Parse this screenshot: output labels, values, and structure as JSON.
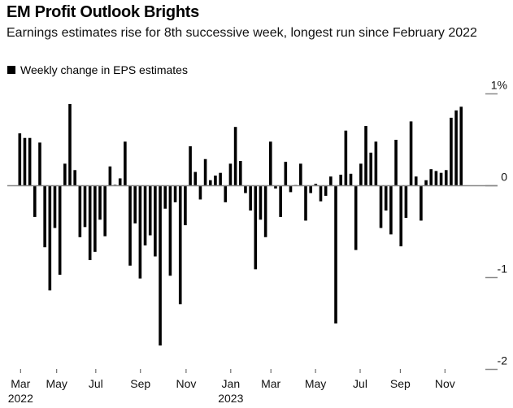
{
  "header": {
    "title": "EM Profit Outlook Brights",
    "subtitle": "Earnings estimates rise for 8th successive week, longest run since February 2022",
    "legend_label": "Weekly change in EPS estimates"
  },
  "colors": {
    "bar": "#000000",
    "axis": "#888888"
  },
  "chart_data": {
    "type": "bar",
    "title": "EM Profit Outlook Brights",
    "subtitle": "Earnings estimates rise for 8th successive week, longest run since February 2022",
    "xlabel": "",
    "ylabel": "",
    "legend": [
      "Weekly change in EPS estimates"
    ],
    "legend_position": "top-left",
    "y_unit": "%",
    "ylim": [
      -2.1,
      1.1
    ],
    "yticks": [
      {
        "value": 1,
        "label": "1%"
      },
      {
        "value": 0,
        "label": "0"
      },
      {
        "value": -1,
        "label": "-1"
      },
      {
        "value": -2,
        "label": "-2"
      }
    ],
    "xticks": [
      {
        "week_index": 0,
        "label": "Mar",
        "year": "2022"
      },
      {
        "week_index": 7.2,
        "label": "May",
        "year": ""
      },
      {
        "week_index": 15.0,
        "label": "Jul",
        "year": ""
      },
      {
        "week_index": 23.9,
        "label": "Sep",
        "year": ""
      },
      {
        "week_index": 33.0,
        "label": "Nov",
        "year": ""
      },
      {
        "week_index": 41.9,
        "label": "Jan",
        "year": "2023"
      },
      {
        "week_index": 49.9,
        "label": "Mar",
        "year": ""
      },
      {
        "week_index": 58.8,
        "label": "May",
        "year": ""
      },
      {
        "week_index": 67.7,
        "label": "Jul",
        "year": ""
      },
      {
        "week_index": 75.7,
        "label": "Sep",
        "year": ""
      },
      {
        "week_index": 84.6,
        "label": "Nov",
        "year": ""
      }
    ],
    "grid": false,
    "series": [
      {
        "name": "Weekly change in EPS estimates",
        "values": [
          0.57,
          0.52,
          0.52,
          -0.34,
          0.47,
          -0.67,
          -1.14,
          -0.46,
          -0.97,
          0.24,
          0.89,
          0.17,
          -0.56,
          -0.45,
          -0.81,
          -0.72,
          -0.37,
          -0.55,
          0.21,
          0.01,
          0.08,
          0.48,
          -0.87,
          -0.41,
          -1.01,
          -0.65,
          -0.54,
          -0.77,
          -1.74,
          -0.25,
          -0.98,
          -0.18,
          -1.29,
          -0.43,
          0.43,
          0.15,
          -0.15,
          0.29,
          0.06,
          0.11,
          0.14,
          -0.18,
          0.24,
          0.64,
          0.27,
          -0.08,
          -0.27,
          -0.91,
          -0.37,
          -0.56,
          0.48,
          -0.03,
          -0.34,
          0.26,
          -0.07,
          0.0,
          0.24,
          -0.38,
          -0.08,
          0.02,
          -0.17,
          -0.11,
          0.1,
          -1.5,
          0.12,
          0.6,
          0.13,
          -0.7,
          0.24,
          0.65,
          0.36,
          0.48,
          -0.46,
          -0.27,
          -0.53,
          0.5,
          -0.66,
          -0.35,
          0.7,
          0.1,
          -0.38,
          0.06,
          0.18,
          0.16,
          0.14,
          0.17,
          0.74,
          0.82,
          0.86
        ]
      }
    ]
  }
}
